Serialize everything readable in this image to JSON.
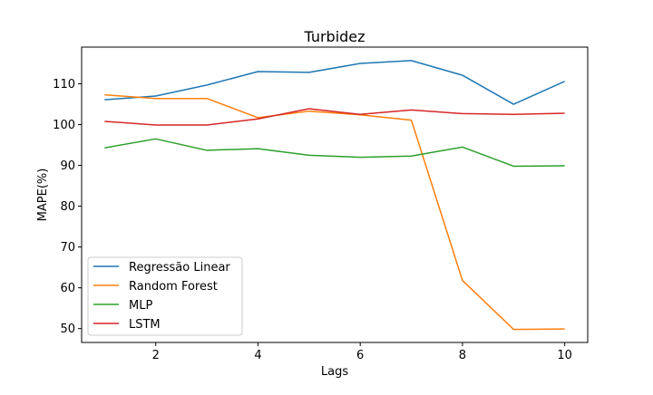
{
  "chart_data": {
    "type": "line",
    "title": "Turbidez",
    "xlabel": "Lags",
    "ylabel": "MAPE(%)",
    "xlim": [
      0.55,
      10.45
    ],
    "ylim": [
      46.6,
      119.0
    ],
    "xticks": [
      2,
      4,
      6,
      8,
      10
    ],
    "yticks": [
      50,
      60,
      70,
      80,
      90,
      100,
      110
    ],
    "grid": false,
    "legend_position": "lower-left",
    "x": [
      1,
      2,
      3,
      4,
      5,
      6,
      7,
      8,
      9,
      10
    ],
    "series": [
      {
        "name": "Regressão Linear",
        "color": "#1f77b4",
        "values": [
          106.1,
          107.0,
          109.7,
          113.0,
          112.8,
          115.0,
          115.7,
          112.1,
          105.0,
          110.6
        ]
      },
      {
        "name": "Random Forest",
        "color": "#ff7f0e",
        "values": [
          107.3,
          106.4,
          106.4,
          101.7,
          103.3,
          102.4,
          101.1,
          61.8,
          49.8,
          49.9
        ]
      },
      {
        "name": "MLP",
        "color": "#2ca02c",
        "values": [
          94.3,
          96.5,
          93.7,
          94.1,
          92.5,
          92.0,
          92.3,
          94.5,
          89.8,
          89.9
        ]
      },
      {
        "name": "LSTM",
        "color": "#d62728",
        "values": [
          100.8,
          99.9,
          99.9,
          101.4,
          103.9,
          102.5,
          103.6,
          102.7,
          102.5,
          102.8
        ]
      }
    ]
  }
}
